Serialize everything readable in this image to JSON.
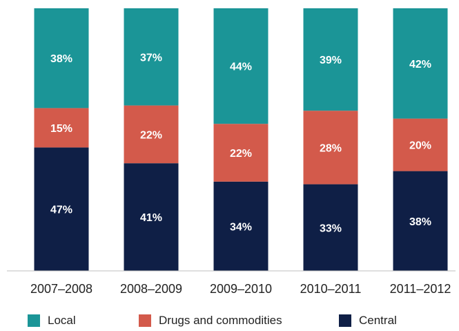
{
  "chart_data": {
    "type": "bar",
    "stacked": true,
    "percent_stacked": true,
    "categories": [
      "2007–2008",
      "2008–2009",
      "2009–2010",
      "2010–2011",
      "2011–2012"
    ],
    "series": [
      {
        "name": "Central",
        "color": "#0f1f46",
        "values": [
          47,
          41,
          34,
          33,
          38
        ],
        "labels": [
          "47%",
          "41%",
          "34%",
          "33%",
          "38%"
        ]
      },
      {
        "name": "Drugs and commodities",
        "color": "#d35a4b",
        "values": [
          15,
          22,
          22,
          28,
          20
        ],
        "labels": [
          "15%",
          "22%",
          "22%",
          "28%",
          "20%"
        ]
      },
      {
        "name": "Local",
        "color": "#1b9597",
        "values": [
          38,
          37,
          44,
          39,
          42
        ],
        "labels": [
          "38%",
          "37%",
          "44%",
          "39%",
          "42%"
        ]
      }
    ],
    "ylim": [
      0,
      100
    ],
    "grid": false,
    "legend_position": "bottom",
    "legend_order": [
      "Local",
      "Drugs and commodities",
      "Central"
    ]
  }
}
